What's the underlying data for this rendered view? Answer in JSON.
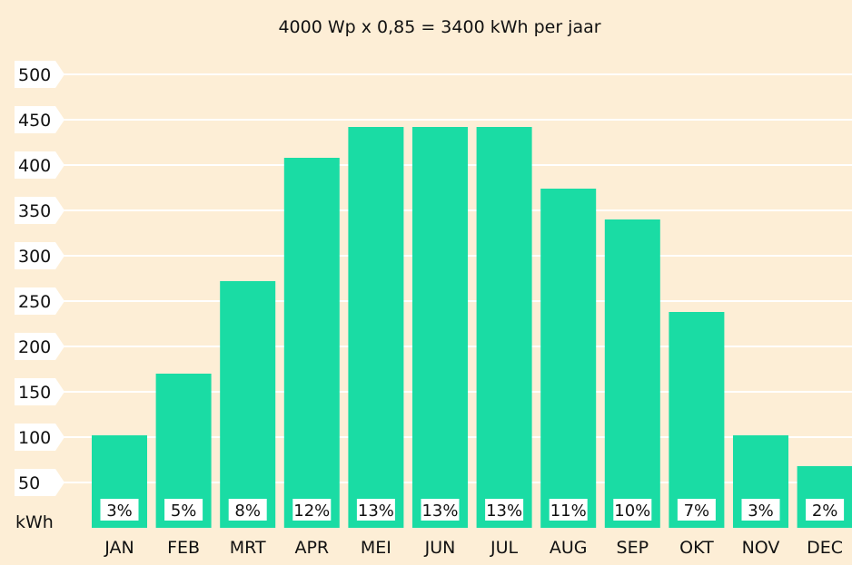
{
  "chart_data": {
    "type": "bar",
    "title": "4000 Wp x 0,85 = 3400 kWh per jaar",
    "ylabel": "kWh",
    "xlabel": "",
    "ylim": [
      0,
      500
    ],
    "yticks": [
      50,
      100,
      150,
      200,
      250,
      300,
      350,
      400,
      450,
      500
    ],
    "grid": true,
    "categories": [
      "JAN",
      "FEB",
      "MRT",
      "APR",
      "MEI",
      "JUN",
      "JUL",
      "AUG",
      "SEP",
      "OKT",
      "NOV",
      "DEC"
    ],
    "values": [
      102,
      170,
      272,
      408,
      442,
      442,
      442,
      374,
      340,
      238,
      102,
      68
    ],
    "percent_labels": [
      "3%",
      "5%",
      "8%",
      "12%",
      "13%",
      "13%",
      "13%",
      "11%",
      "10%",
      "7%",
      "3%",
      "2%"
    ]
  },
  "colors": {
    "background": "#fdeed6",
    "bar": "#1adca4",
    "grid": "#ffffff",
    "label_box": "#ffffff",
    "text": "#111111"
  }
}
